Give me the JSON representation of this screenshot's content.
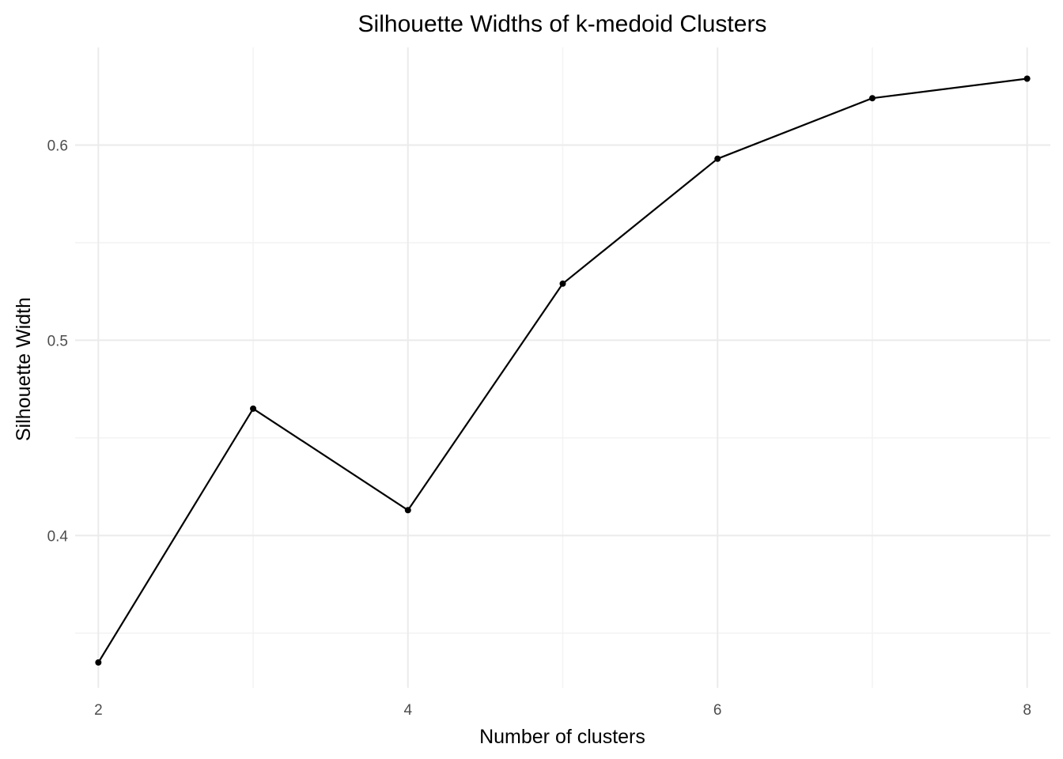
{
  "chart_data": {
    "type": "line",
    "title": "Silhouette Widths of k-medoid Clusters",
    "xlabel": "Number of clusters",
    "ylabel": "Silhouette Width",
    "x": [
      2,
      3,
      4,
      5,
      6,
      7,
      8
    ],
    "series": [
      {
        "name": "",
        "values": [
          0.335,
          0.465,
          0.413,
          0.529,
          0.593,
          0.624,
          0.634
        ]
      }
    ],
    "xlim": [
      1.85,
      8.15
    ],
    "ylim": [
      0.322,
      0.65
    ],
    "x_ticks": [
      2,
      4,
      6,
      8
    ],
    "x_tick_labels": [
      "2",
      "4",
      "6",
      "8"
    ],
    "x_minor": [
      3,
      5,
      7
    ],
    "y_ticks": [
      0.4,
      0.5,
      0.6
    ],
    "y_tick_labels": [
      "0.4",
      "0.5",
      "0.6"
    ],
    "y_minor": [
      0.35,
      0.45,
      0.55
    ],
    "grid": true,
    "legend": "none",
    "line_color": "#000000",
    "grid_color": "#ebebeb"
  }
}
